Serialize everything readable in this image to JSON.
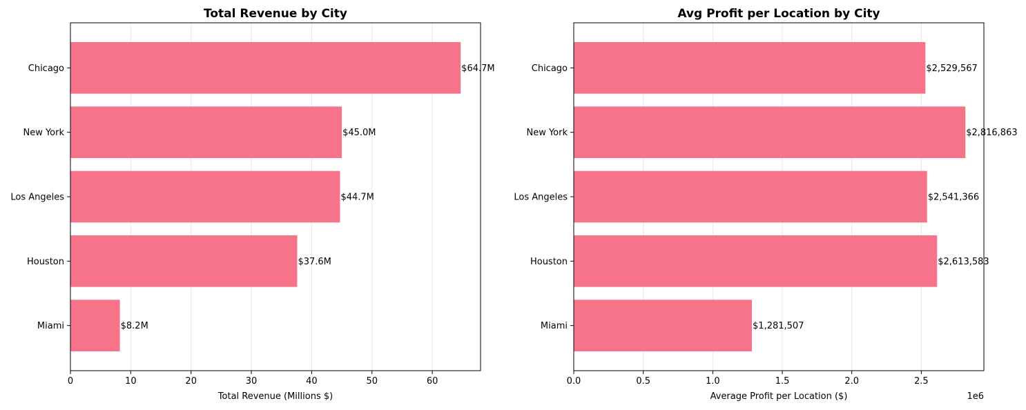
{
  "chart_data": [
    {
      "type": "bar",
      "orientation": "horizontal",
      "title": "Total Revenue by City",
      "xlabel": "Total Revenue (Millions $)",
      "ylabel": "",
      "categories": [
        "Chicago",
        "New York",
        "Los Angeles",
        "Houston",
        "Miami"
      ],
      "values": [
        64.7,
        45.0,
        44.7,
        37.6,
        8.2
      ],
      "data_labels": [
        "$64.7M",
        "$45.0M",
        "$44.7M",
        "$37.6M",
        "$8.2M"
      ],
      "xlim": [
        0,
        68
      ],
      "xticks": [
        0,
        10,
        20,
        30,
        40,
        50,
        60
      ],
      "xtick_labels": [
        "0",
        "10",
        "20",
        "30",
        "40",
        "50",
        "60"
      ],
      "offset_text": "",
      "grid": "x",
      "bar_color": "#f7738a"
    },
    {
      "type": "bar",
      "orientation": "horizontal",
      "title": "Avg Profit per Location by City",
      "xlabel": "Average Profit per Location ($)",
      "ylabel": "",
      "categories": [
        "Chicago",
        "New York",
        "Los Angeles",
        "Houston",
        "Miami"
      ],
      "values": [
        2529567,
        2816863,
        2541366,
        2613583,
        1281507
      ],
      "data_labels": [
        "$2,529,567",
        "$2,816,863",
        "$2,541,366",
        "$2,613,583",
        "$1,281,507"
      ],
      "xlim": [
        0,
        2950000
      ],
      "xticks": [
        0,
        500000,
        1000000,
        1500000,
        2000000,
        2500000
      ],
      "xtick_labels": [
        "0.0",
        "0.5",
        "1.0",
        "1.5",
        "2.0",
        "2.5"
      ],
      "offset_text": "1e6",
      "grid": "x",
      "bar_color": "#f7738a"
    }
  ]
}
